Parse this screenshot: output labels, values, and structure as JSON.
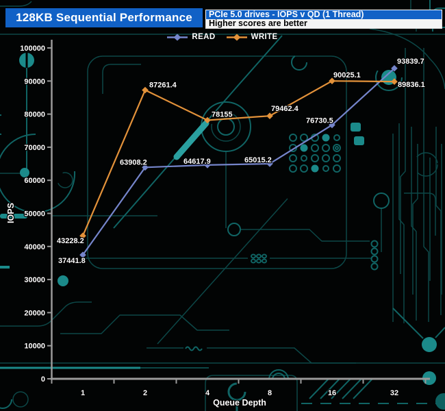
{
  "header": {
    "title": "128KB Sequential Performance",
    "info_line1": "PCIe 5.0 drives - IOPS v QD (1 Thread)",
    "info_line2": "Higher scores are better",
    "title_bg": "#1161c6"
  },
  "chart_data": {
    "type": "line",
    "categories": [
      "1",
      "2",
      "4",
      "8",
      "16",
      "32"
    ],
    "series": [
      {
        "name": "READ",
        "color": "#7585cb",
        "values": [
          37441.8,
          63908.2,
          64617.9,
          65015.2,
          76730.5,
          93839.7
        ],
        "label_offsets": [
          [
            -36,
            12
          ],
          [
            -37,
            -4
          ],
          [
            -35,
            -2
          ],
          [
            -37,
            -2
          ],
          [
            -38,
            -3
          ],
          [
            4,
            -7
          ]
        ]
      },
      {
        "name": "WRITE",
        "color": "#e3923a",
        "values": [
          43228.2,
          87261.4,
          78155,
          79462.4,
          90025.1,
          89836.1
        ],
        "label_offsets": [
          [
            -38,
            11
          ],
          [
            6,
            -4
          ],
          [
            6,
            -5
          ],
          [
            2,
            -7
          ],
          [
            2,
            -5
          ],
          [
            5,
            8
          ]
        ]
      }
    ],
    "xlabel": "Queue Depth",
    "ylabel": "IOPS",
    "ylim": [
      0,
      100000
    ],
    "ytick_step": 10000,
    "legend_position": "top-center",
    "grid": false,
    "axis_color": "#9a9a9a",
    "text_color": "#ffffff"
  }
}
